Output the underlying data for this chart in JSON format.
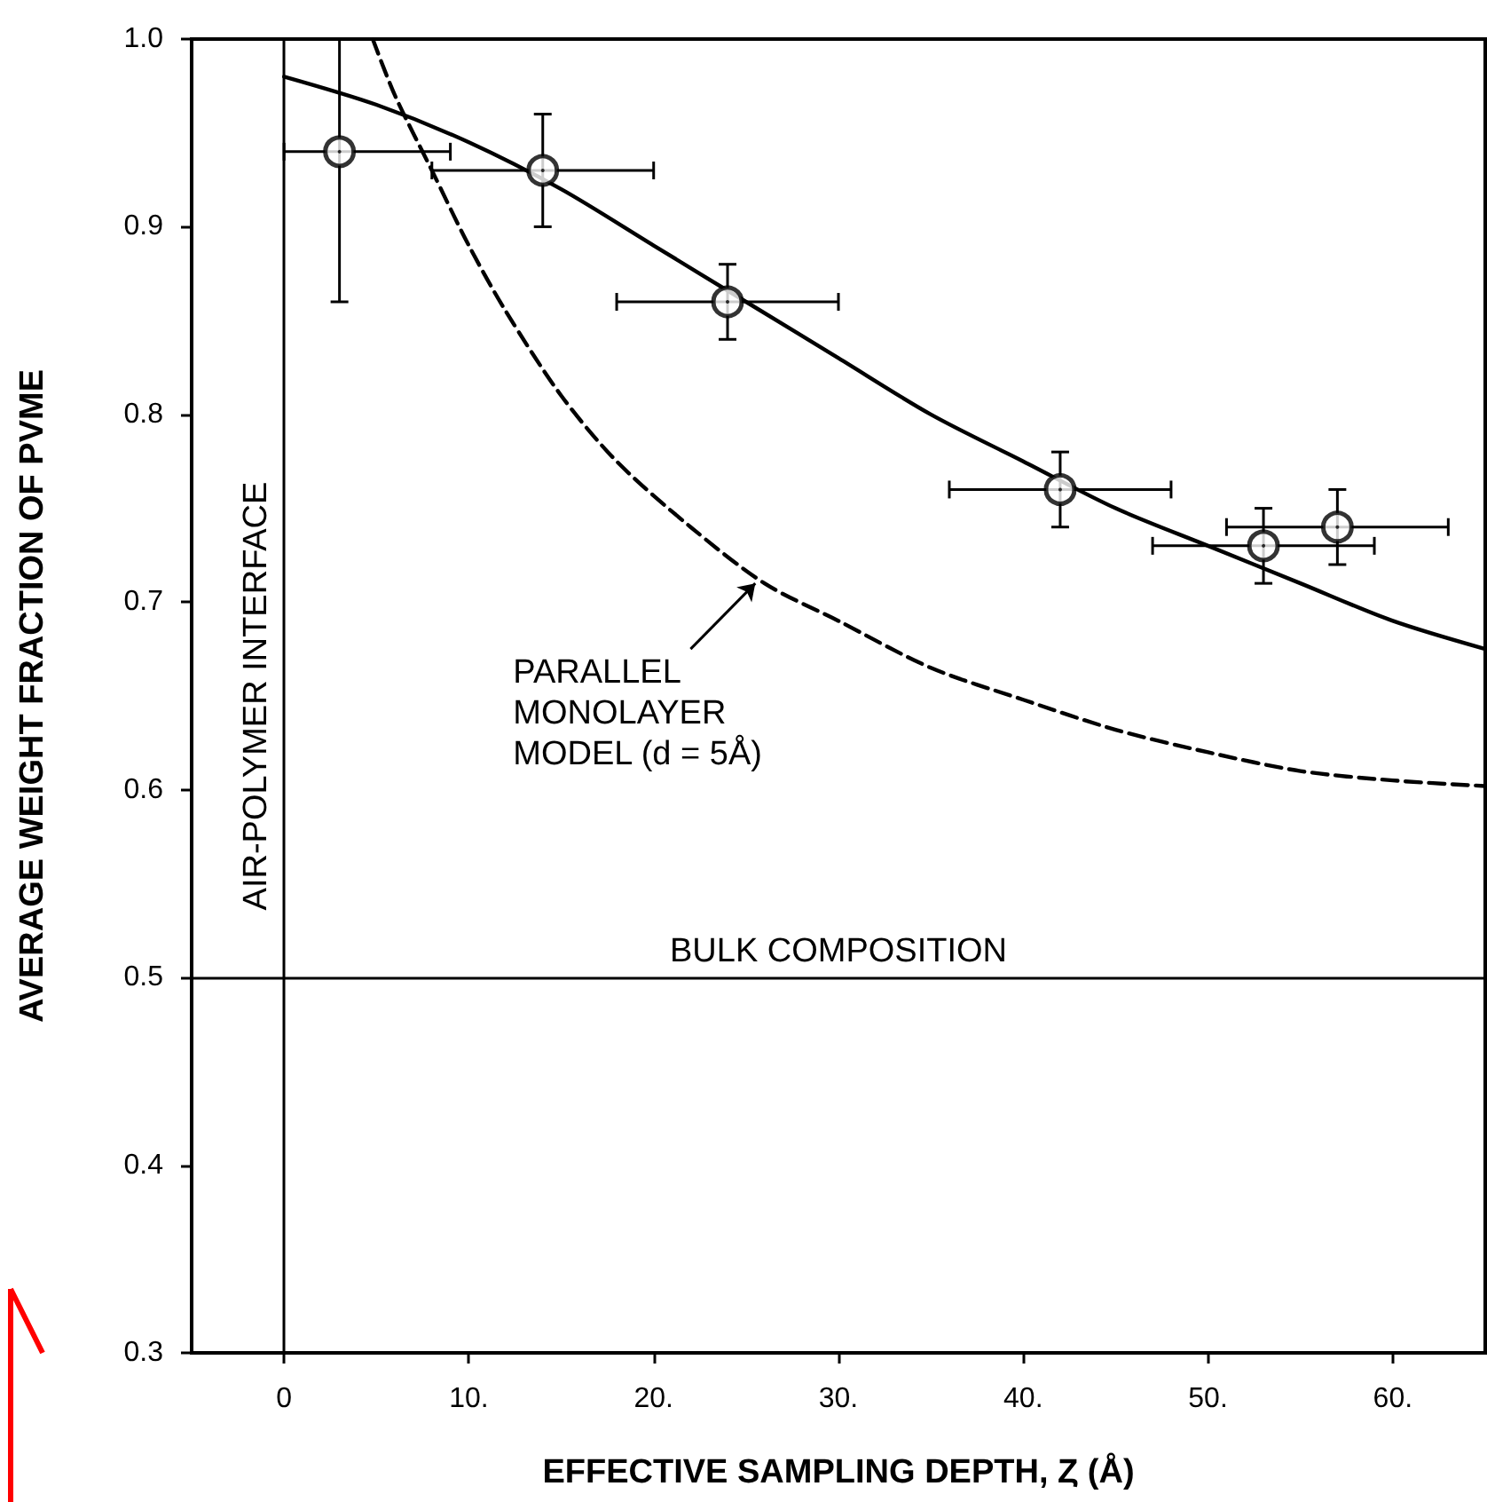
{
  "chart_data": {
    "type": "scatter",
    "xlabel": "EFFECTIVE SAMPLING DEPTH, Ȥ (Å)",
    "ylabel": "AVERAGE WEIGHT FRACTION OF PVME",
    "xlim": [
      -5,
      65
    ],
    "ylim": [
      0.3,
      1.0
    ],
    "xticks": [
      {
        "value": 0,
        "label": "0"
      },
      {
        "value": 10,
        "label": "10."
      },
      {
        "value": 20,
        "label": "20."
      },
      {
        "value": 30,
        "label": "30."
      },
      {
        "value": 40,
        "label": "40."
      },
      {
        "value": 50,
        "label": "50."
      },
      {
        "value": 60,
        "label": "60."
      }
    ],
    "yticks": [
      0.3,
      0.4,
      0.5,
      0.6,
      0.7,
      0.8,
      0.9,
      {
        "value": 1.0,
        "label": "1.0"
      }
    ],
    "grid": false,
    "marker": "circle",
    "series": [
      {
        "color": "#000000",
        "x": [
          3,
          14,
          24,
          42,
          53,
          57
        ],
        "values": [
          0.94,
          0.93,
          0.86,
          0.76,
          0.73,
          0.74
        ],
        "errors": [
          [
            0.86,
            1.0
          ],
          [
            0.9,
            0.96
          ],
          [
            0.84,
            0.88
          ],
          [
            0.74,
            0.78
          ],
          [
            0.71,
            0.75
          ],
          [
            0.72,
            0.76
          ]
        ],
        "xerrors": [
          [
            0,
            9
          ],
          [
            8,
            20
          ],
          [
            18,
            30
          ],
          [
            36,
            48
          ],
          [
            47,
            59
          ],
          [
            51,
            63
          ]
        ]
      },
      {
        "type": "line",
        "color": "#000000",
        "line_style": "solid",
        "marker": "none",
        "x": [
          0,
          5,
          10,
          15,
          20,
          25,
          30,
          35,
          40,
          45,
          50,
          55,
          60,
          65
        ],
        "values": [
          0.98,
          0.965,
          0.945,
          0.92,
          0.89,
          0.86,
          0.83,
          0.8,
          0.775,
          0.75,
          0.73,
          0.71,
          0.69,
          0.675
        ]
      },
      {
        "type": "line",
        "color": "#000000",
        "line_style": "dashed",
        "marker": "none",
        "x": [
          4.8,
          6,
          8,
          10,
          12,
          15,
          18,
          22,
          26,
          30,
          35,
          40,
          45,
          50,
          55,
          60,
          65
        ],
        "values": [
          1.0,
          0.97,
          0.93,
          0.89,
          0.855,
          0.81,
          0.775,
          0.74,
          0.71,
          0.69,
          0.665,
          0.648,
          0.632,
          0.62,
          0.61,
          0.605,
          0.602
        ]
      }
    ],
    "ref_lines": [
      {
        "axis": "y",
        "value": 0.5,
        "label": "BULK COMPOSITION"
      },
      {
        "axis": "x",
        "value": 0,
        "label": "AIR-POLYMER INTERFACE"
      }
    ],
    "annotations": [
      {
        "text": "PARALLEL\nMONOLAYER\nMODEL (d = 5Å)",
        "x": 25.5,
        "y": 0.71
      }
    ]
  }
}
